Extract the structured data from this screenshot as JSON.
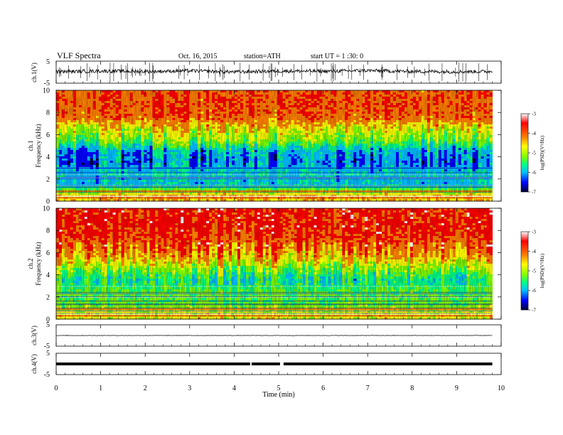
{
  "header": {
    "title": "VLF Spectra",
    "date": "Oct. 16, 2015",
    "station": "station=ATH",
    "start": "start UT =  1 :30: 0"
  },
  "colorbar": {
    "label": "log(PSD)(V²/Hz)",
    "ticks": [
      "-3",
      "-4",
      "-5",
      "-6",
      "-7"
    ]
  },
  "chart_data": [
    {
      "type": "line",
      "name": "ch.1(V)",
      "ylabel": "ch.1(V)",
      "ylim": [
        -5,
        5
      ],
      "y_ticks": [
        "5",
        "-5"
      ],
      "x": [
        0,
        1,
        2,
        3,
        4,
        5,
        6,
        7,
        8,
        9,
        9.8
      ],
      "values": [
        0.2,
        0.5,
        0.3,
        0.6,
        0.1,
        0.5,
        0.4,
        0.7,
        0.3,
        0.2,
        0.3
      ],
      "color": "#111111"
    },
    {
      "type": "heatmap",
      "name": "ch.1",
      "ylabel": "ch.1 Frequency (kHz)",
      "ylim": [
        0,
        10
      ],
      "y_ticks": [
        "0",
        "2",
        "4",
        "6",
        "8",
        "10"
      ],
      "x_range": [
        0,
        9.8
      ],
      "colorscale": [
        "#000033",
        "#0000ff",
        "#00bfff",
        "#00ff88",
        "#80ff00",
        "#ffff00",
        "#ff8000",
        "#ff0000",
        "#ffffff"
      ],
      "zlim": [
        -7,
        -3
      ],
      "frequency_profile_logPSD": [
        {
          "f": 0.5,
          "v": -4.3
        },
        {
          "f": 1.5,
          "v": -5.9
        },
        {
          "f": 2.5,
          "v": -5.8
        },
        {
          "f": 3.5,
          "v": -6.2
        },
        {
          "f": 4.5,
          "v": -6.0
        },
        {
          "f": 5.5,
          "v": -5.0
        },
        {
          "f": 6.5,
          "v": -4.6
        },
        {
          "f": 7.5,
          "v": -3.9
        },
        {
          "f": 8.5,
          "v": -3.8
        },
        {
          "f": 9.5,
          "v": -3.8
        }
      ]
    },
    {
      "type": "heatmap",
      "name": "ch.2",
      "ylabel": "ch.2 Frequency (kHz)",
      "ylim": [
        0,
        10
      ],
      "y_ticks": [
        "0",
        "2",
        "4",
        "6",
        "8",
        "10"
      ],
      "x_range": [
        0,
        9.8
      ],
      "colorscale": [
        "#000033",
        "#0000ff",
        "#00bfff",
        "#00ff88",
        "#80ff00",
        "#ffff00",
        "#ff8000",
        "#ff0000",
        "#ffffff"
      ],
      "zlim": [
        -7,
        -3
      ],
      "frequency_profile_logPSD": [
        {
          "f": 0.5,
          "v": -4.6
        },
        {
          "f": 1.5,
          "v": -5.2
        },
        {
          "f": 2.5,
          "v": -5.2
        },
        {
          "f": 3.5,
          "v": -5.6
        },
        {
          "f": 4.5,
          "v": -5.0
        },
        {
          "f": 5.5,
          "v": -4.3
        },
        {
          "f": 6.5,
          "v": -3.9
        },
        {
          "f": 7.5,
          "v": -3.7
        },
        {
          "f": 8.5,
          "v": -3.6
        },
        {
          "f": 9.5,
          "v": -3.6
        }
      ]
    },
    {
      "type": "line",
      "name": "ch.3(V)",
      "ylabel": "ch.3(V)",
      "ylim": [
        -5,
        5
      ],
      "y_ticks": [
        "5",
        "-5"
      ],
      "x": [
        0,
        9.8
      ],
      "values": [
        0,
        0
      ],
      "color": "#333333"
    },
    {
      "type": "line",
      "name": "ch.4(V)",
      "ylabel": "ch.4(V)",
      "ylim": [
        -5,
        5
      ],
      "y_ticks": [
        "5",
        "-5"
      ],
      "x": [
        0,
        9.8
      ],
      "values": [
        0,
        0
      ],
      "color": "#000000"
    }
  ],
  "x_axis": {
    "label": "Time (min)",
    "ticks": [
      "0",
      "1",
      "2",
      "3",
      "4",
      "5",
      "6",
      "7",
      "8",
      "9",
      "10"
    ],
    "xlim": [
      0,
      10
    ]
  }
}
